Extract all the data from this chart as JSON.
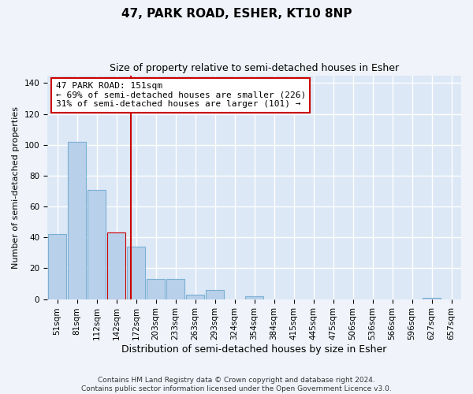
{
  "title": "47, PARK ROAD, ESHER, KT10 8NP",
  "subtitle": "Size of property relative to semi-detached houses in Esher",
  "xlabel": "Distribution of semi-detached houses by size in Esher",
  "ylabel": "Number of semi-detached properties",
  "categories": [
    "51sqm",
    "81sqm",
    "112sqm",
    "142sqm",
    "172sqm",
    "203sqm",
    "233sqm",
    "263sqm",
    "293sqm",
    "324sqm",
    "354sqm",
    "384sqm",
    "415sqm",
    "445sqm",
    "475sqm",
    "506sqm",
    "536sqm",
    "566sqm",
    "596sqm",
    "627sqm",
    "657sqm"
  ],
  "values": [
    42,
    102,
    71,
    43,
    34,
    13,
    13,
    3,
    6,
    0,
    2,
    0,
    0,
    0,
    0,
    0,
    0,
    0,
    0,
    1,
    0
  ],
  "bar_color": "#b8d0ea",
  "bar_edgecolor": "#7aafd4",
  "highlight_bar_index": 3,
  "highlight_bar_color": "#b8d0ea",
  "highlight_bar_edgecolor": "#cc0000",
  "vline_x": 3.72,
  "vline_color": "#cc0000",
  "annotation_text": "47 PARK ROAD: 151sqm\n← 69% of semi-detached houses are smaller (226)\n31% of semi-detached houses are larger (101) →",
  "annotation_box_color": "#ffffff",
  "annotation_box_edgecolor": "#cc0000",
  "ylim": [
    0,
    145
  ],
  "yticks": [
    0,
    20,
    40,
    60,
    80,
    100,
    120,
    140
  ],
  "background_color": "#dce8f5",
  "fig_background_color": "#f0f4fa",
  "grid_color": "#ffffff",
  "footer_line1": "Contains HM Land Registry data © Crown copyright and database right 2024.",
  "footer_line2": "Contains public sector information licensed under the Open Government Licence v3.0.",
  "title_fontsize": 11,
  "subtitle_fontsize": 9,
  "xlabel_fontsize": 9,
  "ylabel_fontsize": 8,
  "tick_fontsize": 7.5,
  "annotation_fontsize": 8,
  "footer_fontsize": 6.5
}
